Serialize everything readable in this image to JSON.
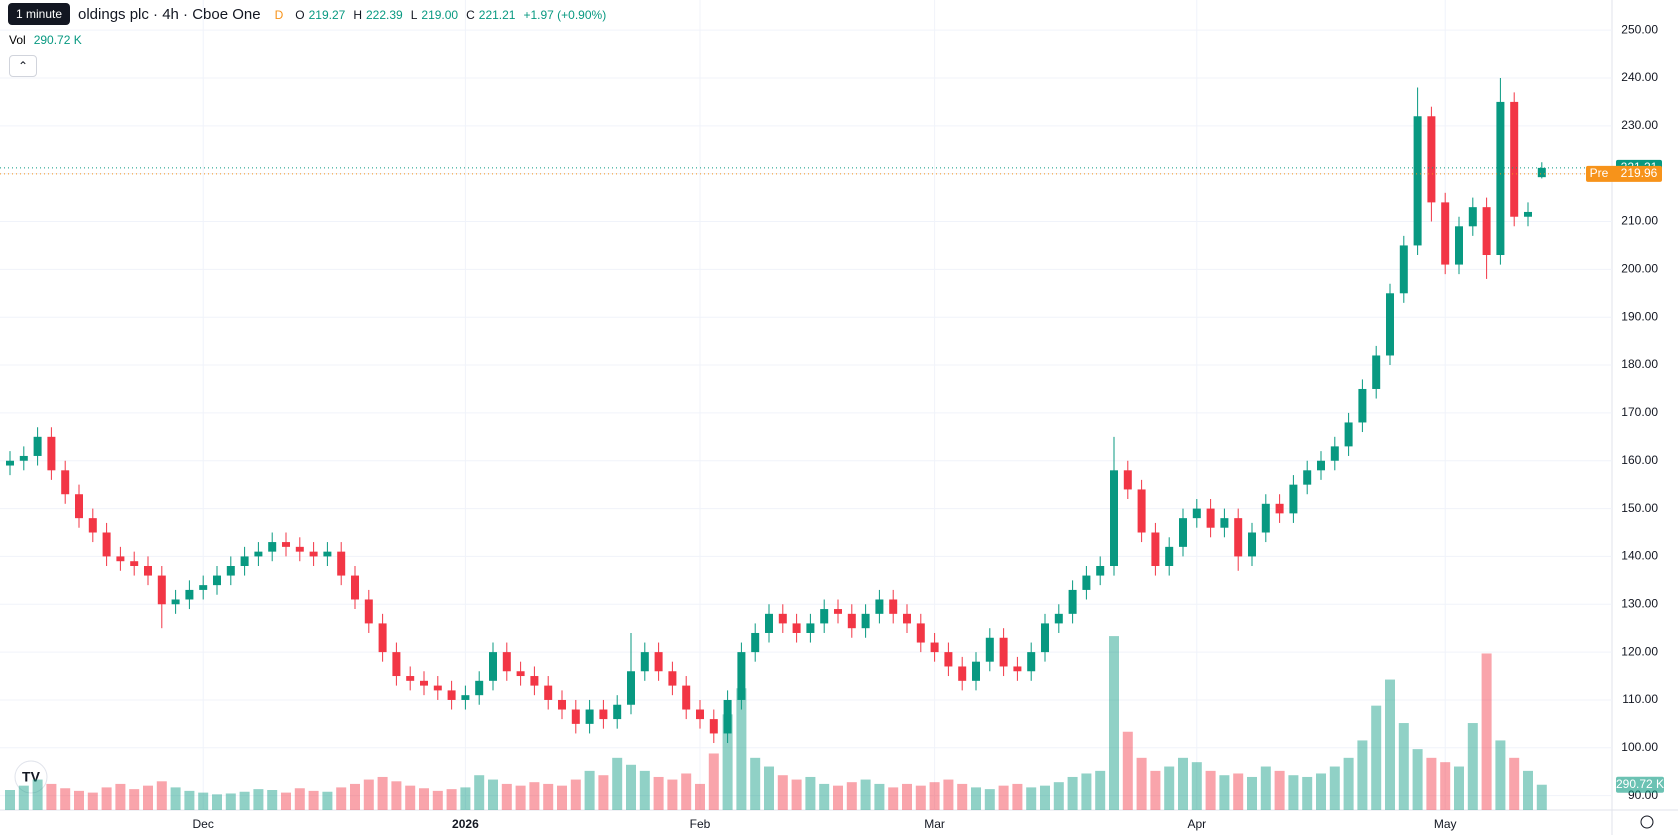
{
  "chart_data": {
    "type": "candlestick",
    "tooltip": "1 minute",
    "title": "oldings plc · 4h · Cboe One",
    "interval_badge": "D",
    "header": {
      "o_label": "O",
      "o": "219.27",
      "h_label": "H",
      "h": "222.39",
      "l_label": "L",
      "l": "219.00",
      "c_label": "C",
      "c": "221.21",
      "change": "+1.97 (+0.90%)",
      "vol_label": "Vol",
      "vol": "290.72 K"
    },
    "colors": {
      "up": "#089981",
      "down": "#f23645",
      "pre": "#f7931a"
    },
    "open": [
      159,
      160,
      161,
      165,
      158,
      153,
      148,
      145,
      140,
      139,
      138,
      136,
      130,
      131,
      133,
      134,
      136,
      138,
      140,
      141,
      143,
      142,
      141,
      140,
      141,
      136,
      131,
      126,
      120,
      115,
      114,
      113,
      112,
      110,
      111,
      114,
      120,
      116,
      115,
      113,
      110,
      108,
      105,
      108,
      106,
      109,
      116,
      120,
      116,
      113,
      108,
      106,
      103,
      110,
      120,
      124,
      128,
      126,
      124,
      126,
      129,
      128,
      125,
      128,
      131,
      128,
      126,
      122,
      120,
      117,
      114,
      118,
      123,
      117,
      116,
      120,
      126,
      128,
      133,
      136,
      138,
      158,
      154,
      145,
      138,
      142,
      148,
      150,
      146,
      148,
      140,
      145,
      151,
      149,
      155,
      158,
      160,
      163,
      168,
      175,
      182,
      195,
      205,
      232,
      214,
      201,
      209,
      213,
      203,
      235,
      211,
      219.27
    ],
    "high": [
      162,
      163,
      167,
      167,
      160,
      155,
      150,
      147,
      142,
      141,
      140,
      138,
      133,
      135,
      136,
      138,
      140,
      142,
      143,
      145,
      145,
      144,
      143,
      143,
      143,
      138,
      133,
      128,
      122,
      117,
      116,
      115,
      114,
      113,
      116,
      122,
      122,
      118,
      117,
      115,
      112,
      110,
      110,
      110,
      111,
      124,
      122,
      122,
      118,
      115,
      110,
      108,
      112,
      122,
      126,
      130,
      130,
      128,
      128,
      131,
      131,
      130,
      130,
      133,
      133,
      130,
      128,
      124,
      122,
      119,
      120,
      125,
      125,
      119,
      122,
      128,
      130,
      135,
      138,
      140,
      165,
      160,
      156,
      147,
      144,
      150,
      152,
      152,
      150,
      150,
      147,
      153,
      153,
      157,
      160,
      162,
      165,
      170,
      177,
      184,
      197,
      207,
      238,
      234,
      216,
      211,
      215,
      215,
      240,
      237,
      214,
      222.39
    ],
    "low": [
      157,
      158,
      159,
      156,
      151,
      146,
      143,
      138,
      137,
      136,
      134,
      125,
      128,
      129,
      131,
      132,
      134,
      136,
      138,
      139,
      140,
      139,
      138,
      138,
      134,
      129,
      124,
      118,
      113,
      112,
      111,
      110,
      108,
      108,
      109,
      112,
      114,
      113,
      111,
      108,
      106,
      103,
      103,
      104,
      104,
      107,
      114,
      114,
      111,
      106,
      104,
      101,
      101,
      108,
      118,
      122,
      124,
      122,
      122,
      124,
      126,
      123,
      123,
      126,
      126,
      124,
      120,
      118,
      115,
      112,
      112,
      116,
      115,
      114,
      114,
      118,
      124,
      126,
      131,
      134,
      136,
      152,
      143,
      136,
      136,
      140,
      146,
      144,
      144,
      137,
      138,
      143,
      147,
      147,
      153,
      156,
      158,
      161,
      166,
      173,
      180,
      193,
      203,
      210,
      199,
      199,
      207,
      198,
      201,
      209,
      209,
      219
    ],
    "close": [
      160,
      161,
      165,
      158,
      153,
      148,
      145,
      140,
      139,
      138,
      136,
      130,
      131,
      133,
      134,
      136,
      138,
      140,
      141,
      143,
      142,
      141,
      140,
      141,
      136,
      131,
      126,
      120,
      115,
      114,
      113,
      112,
      110,
      111,
      114,
      120,
      116,
      115,
      113,
      110,
      108,
      105,
      108,
      106,
      109,
      116,
      120,
      116,
      113,
      108,
      106,
      103,
      110,
      120,
      124,
      128,
      126,
      124,
      126,
      129,
      128,
      125,
      128,
      131,
      128,
      126,
      122,
      120,
      117,
      114,
      118,
      123,
      117,
      116,
      120,
      126,
      128,
      133,
      136,
      138,
      158,
      154,
      145,
      138,
      142,
      148,
      150,
      146,
      148,
      140,
      145,
      151,
      149,
      155,
      158,
      160,
      163,
      168,
      175,
      182,
      195,
      205,
      232,
      214,
      201,
      209,
      213,
      203,
      235,
      211,
      212,
      221.21
    ],
    "volume": [
      230,
      280,
      350,
      300,
      250,
      220,
      200,
      260,
      300,
      240,
      280,
      330,
      260,
      220,
      200,
      180,
      190,
      210,
      240,
      230,
      200,
      250,
      220,
      210,
      260,
      300,
      350,
      380,
      330,
      280,
      250,
      220,
      240,
      260,
      400,
      350,
      300,
      280,
      320,
      300,
      280,
      350,
      450,
      400,
      600,
      520,
      450,
      380,
      350,
      420,
      300,
      650,
      1100,
      1400,
      600,
      500,
      400,
      350,
      380,
      300,
      280,
      320,
      350,
      300,
      260,
      300,
      280,
      320,
      350,
      300,
      260,
      240,
      280,
      300,
      260,
      280,
      320,
      380,
      420,
      450,
      2000,
      900,
      600,
      450,
      500,
      600,
      550,
      450,
      400,
      420,
      380,
      500,
      450,
      400,
      380,
      420,
      500,
      600,
      800,
      1200,
      1500,
      1000,
      700,
      600,
      550,
      500,
      1000,
      1800,
      800,
      600,
      450,
      290.72
    ],
    "vlim": [
      0,
      2300
    ],
    "premarket": {
      "label": "Pre",
      "value": 219.96,
      "value_label": "219.96"
    },
    "last_label": "221.21",
    "ylim": [
      87,
      256.3
    ],
    "yticks": [
      {
        "value": 90,
        "label": "90.00"
      },
      {
        "value": 100,
        "label": "100.00"
      },
      {
        "value": 110,
        "label": "110.00"
      },
      {
        "value": 120,
        "label": "120.00"
      },
      {
        "value": 130,
        "label": "130.00"
      },
      {
        "value": 140,
        "label": "140.00"
      },
      {
        "value": 150,
        "label": "150.00"
      },
      {
        "value": 160,
        "label": "160.00"
      },
      {
        "value": 170,
        "label": "170.00"
      },
      {
        "value": 180,
        "label": "180.00"
      },
      {
        "value": 190,
        "label": "190.00"
      },
      {
        "value": 200,
        "label": "200.00"
      },
      {
        "value": 210,
        "label": "210.00"
      },
      {
        "value": 220,
        "label": "220.00"
      },
      {
        "value": 230,
        "label": "230.00"
      },
      {
        "value": 240,
        "label": "240.00"
      },
      {
        "value": 250,
        "label": "250.00"
      }
    ],
    "xticks": [
      {
        "value": 14,
        "label": "Dec"
      },
      {
        "value": 33,
        "label": "2026"
      },
      {
        "value": 50,
        "label": "Feb"
      },
      {
        "value": 67,
        "label": "Mar"
      },
      {
        "value": 86,
        "label": "Apr"
      },
      {
        "value": 104,
        "label": "May"
      }
    ],
    "grid": true
  }
}
